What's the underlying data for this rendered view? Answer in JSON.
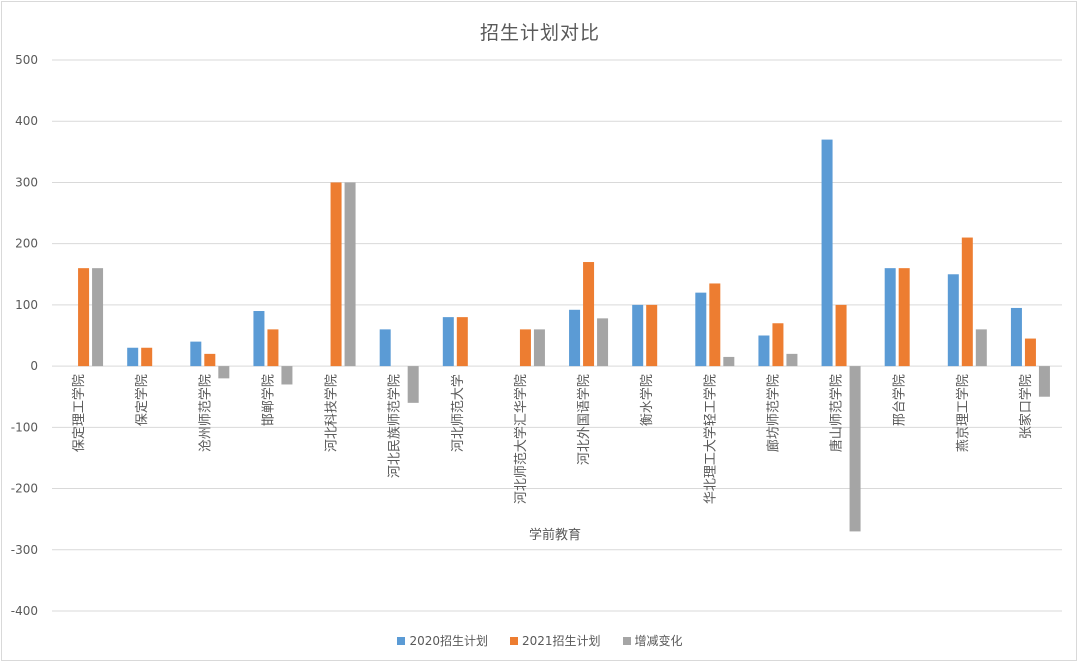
{
  "chart_data": {
    "type": "bar",
    "title": "招生计划对比",
    "xlabel": "学前教育",
    "ylabel": "",
    "ylim": [
      -400,
      500
    ],
    "yticks": [
      500,
      400,
      300,
      200,
      100,
      0,
      -100,
      -200,
      -300,
      -400
    ],
    "grid": true,
    "legend_position": "bottom",
    "categories": [
      "保定理工学院",
      "保定学院",
      "沧州师范学院",
      "邯郸学院",
      "河北科技学院",
      "河北民族师范学院",
      "河北师范大学",
      "河北师范大学汇华学院",
      "河北外国语学院",
      "衡水学院",
      "华北理工大学轻工学院",
      "廊坊师范学院",
      "唐山师范学院",
      "邢台学院",
      "燕京理工学院",
      "张家口学院"
    ],
    "series": [
      {
        "name": "2020招生计划",
        "color": "#5b9bd5",
        "values": [
          0,
          30,
          40,
          90,
          0,
          60,
          80,
          0,
          92,
          100,
          120,
          50,
          370,
          160,
          150,
          95
        ]
      },
      {
        "name": "2021招生计划",
        "color": "#ed7d31",
        "values": [
          160,
          30,
          20,
          60,
          300,
          0,
          80,
          60,
          170,
          100,
          135,
          70,
          100,
          160,
          210,
          45
        ]
      },
      {
        "name": "增减变化",
        "color": "#a5a5a5",
        "values": [
          160,
          0,
          -20,
          -30,
          300,
          -60,
          0,
          60,
          78,
          0,
          15,
          20,
          -270,
          0,
          60,
          -50
        ]
      }
    ]
  }
}
